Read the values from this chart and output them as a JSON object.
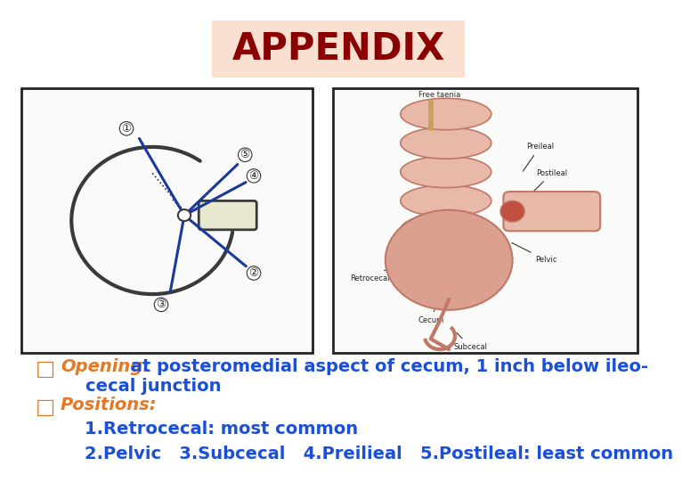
{
  "title": "APPENDIX",
  "title_color": "#8B0000",
  "title_bg_color": "#FAE0D0",
  "title_fontsize": 30,
  "title_fontweight": "bold",
  "bg_color": "#FFFFFF",
  "bullet_color_orange": "#E87722",
  "bullet_color_blue": "#1B4FD8",
  "bullet1_label": "Opening:",
  "bullet1_rest": " at posteromedial aspect of cecum, 1 inch below ileo-",
  "bullet1_cont": "cecal junction",
  "bullet2_label": "Positions:",
  "sub1": "1.Retrocecal: most common",
  "sub2": "2.Pelvic   3.Subcecal   4.Preilieal   5.Postileal: least common",
  "text_fontsize": 14,
  "sub_fontsize": 14,
  "img_border_color": "#222222",
  "img_border_lw": 2.0
}
